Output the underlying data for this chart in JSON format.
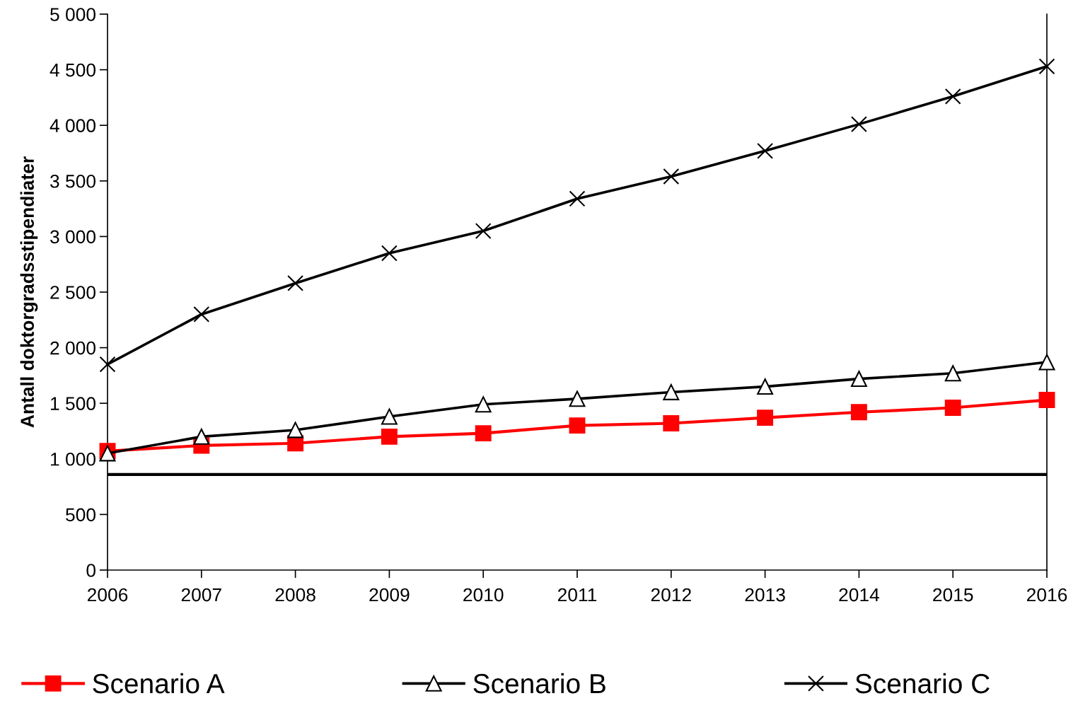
{
  "chart_data": {
    "type": "line",
    "ylabel": "Antall doktorgradsstipendiater",
    "x": [
      2006,
      2007,
      2008,
      2009,
      2010,
      2011,
      2012,
      2013,
      2014,
      2015,
      2016
    ],
    "xlim": [
      2006,
      2016
    ],
    "xticks": [
      2006,
      2007,
      2008,
      2009,
      2010,
      2011,
      2012,
      2013,
      2014,
      2015,
      2016
    ],
    "ylim": [
      0,
      5000
    ],
    "yticks": [
      0,
      {
        "value": 500,
        "label": "500"
      },
      {
        "value": 1000,
        "label": "1 000"
      },
      {
        "value": 1500,
        "label": "1 500"
      },
      {
        "value": 2000,
        "label": "2 000"
      },
      {
        "value": 2500,
        "label": "2 500"
      },
      {
        "value": 3000,
        "label": "3 000"
      },
      {
        "value": 3500,
        "label": "3 500"
      },
      {
        "value": 4000,
        "label": "4 000"
      },
      {
        "value": 4500,
        "label": "4 500"
      },
      {
        "value": 5000,
        "label": "5 000"
      }
    ],
    "grid": false,
    "legend": "bottom",
    "line_style": "solid",
    "series": [
      {
        "name": "Scenario A",
        "color": "#ff0000",
        "marker": "square",
        "values": [
          1070,
          1120,
          1140,
          1200,
          1230,
          1300,
          1320,
          1370,
          1420,
          1460,
          1530
        ]
      },
      {
        "name": "Scenario B",
        "color": "#000000",
        "marker": "triangle",
        "values": [
          1050,
          1200,
          1260,
          1380,
          1490,
          1540,
          1600,
          1650,
          1720,
          1770,
          1870
        ]
      },
      {
        "name": "Scenario C",
        "color": "#000000",
        "marker": "cross",
        "values": [
          1850,
          2300,
          2580,
          2850,
          3050,
          3340,
          3540,
          3770,
          4010,
          4260,
          4530
        ]
      }
    ],
    "ref_lines": [
      {
        "axis": "y",
        "value": 860,
        "color": "#000000"
      }
    ]
  }
}
